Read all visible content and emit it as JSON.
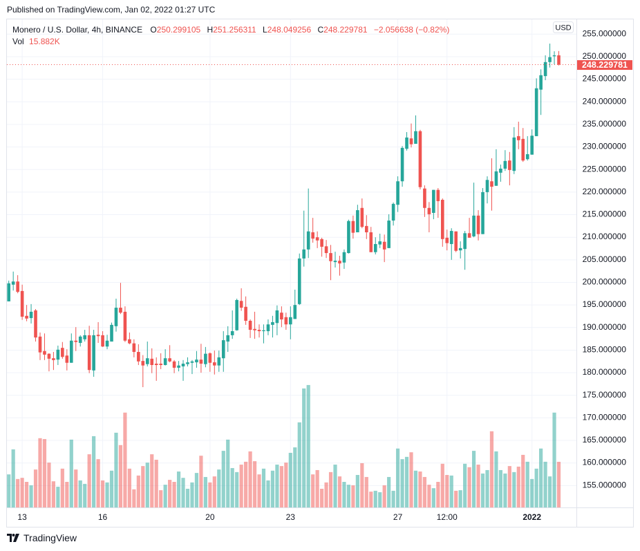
{
  "published": "Published on TradingView.com, Jan 02, 2022 01:27 UTC",
  "legend": {
    "symbol": "Monero / U.S. Dollar, 4h, BINANCE",
    "o_label": "O",
    "o": "250.299105",
    "h_label": "H",
    "h": "251.256311",
    "l_label": "L",
    "l": "248.049256",
    "c_label": "C",
    "c": "248.229781",
    "change": "−2.056638 (−0.82%)",
    "vol_label": "Vol",
    "vol": "15.882K"
  },
  "footer": {
    "brand": "TradingView"
  },
  "colors": {
    "up": "#26a69a",
    "down": "#ef5350",
    "grid": "#f0f3fa",
    "border": "#e0e3eb",
    "text": "#131722"
  },
  "chart_data": {
    "type": "candlestick",
    "symbol": "Monero / U.S. Dollar",
    "interval": "4h",
    "exchange": "BINANCE",
    "currency": "USD",
    "price_axis": {
      "min": 155,
      "max": 255,
      "step": 5,
      "decimals": 6,
      "position": "right"
    },
    "x_tick_labels": [
      "13",
      "16",
      "20",
      "23",
      "27",
      "12:00",
      "2022"
    ],
    "last_price": 248.229781,
    "last_price_label": "248.229781",
    "grid": true,
    "ohlc_fields": [
      "open",
      "high",
      "low",
      "close"
    ],
    "candles": [
      [
        195.8,
        200.4,
        195.8,
        199.8
      ],
      [
        199.5,
        202.4,
        198.2,
        200.2
      ],
      [
        200.2,
        201.6,
        197.6,
        197.9
      ],
      [
        198.1,
        199.5,
        191.7,
        192.4
      ],
      [
        192.6,
        195.0,
        191.4,
        192.0
      ],
      [
        192.1,
        195.2,
        190.9,
        193.5
      ],
      [
        193.8,
        194.1,
        186.9,
        187.8
      ],
      [
        188.0,
        188.9,
        182.8,
        184.5
      ],
      [
        184.8,
        188.7,
        182.8,
        184.0
      ],
      [
        184.2,
        184.3,
        180.3,
        183.1
      ],
      [
        183.2,
        184.6,
        180.6,
        182.8
      ],
      [
        182.9,
        186.0,
        181.7,
        185.1
      ],
      [
        185.5,
        186.8,
        183.1,
        183.5
      ],
      [
        183.8,
        185.2,
        180.5,
        182.2
      ],
      [
        182.2,
        188.7,
        182.2,
        187.1
      ],
      [
        187.1,
        190.1,
        184.8,
        186.8
      ],
      [
        186.6,
        188.3,
        185.8,
        188.0
      ],
      [
        187.4,
        189.5,
        186.9,
        188.3
      ],
      [
        188.3,
        190.4,
        179.9,
        180.6
      ],
      [
        180.5,
        189.5,
        179.1,
        188.3
      ],
      [
        188.4,
        191.2,
        186.6,
        188.1
      ],
      [
        188.3,
        189.2,
        185.7,
        185.8
      ],
      [
        185.8,
        188.4,
        185.2,
        187.1
      ],
      [
        186.9,
        191.1,
        186.9,
        190.6
      ],
      [
        190.3,
        196.4,
        189.1,
        194.4
      ],
      [
        194.4,
        199.9,
        193.0,
        193.3
      ],
      [
        193.5,
        194.7,
        186.8,
        187.1
      ],
      [
        187.4,
        188.9,
        186.3,
        186.5
      ],
      [
        186.5,
        187.4,
        183.4,
        184.6
      ],
      [
        184.6,
        186.3,
        181.7,
        182.5
      ],
      [
        182.6,
        183.9,
        176.8,
        181.6
      ],
      [
        181.9,
        186.9,
        181.4,
        183.2
      ],
      [
        183.1,
        185.4,
        179.9,
        181.7
      ],
      [
        182.0,
        183.4,
        178.2,
        181.7
      ],
      [
        182.0,
        184.3,
        180.8,
        181.7
      ],
      [
        181.7,
        185.2,
        181.6,
        183.2
      ],
      [
        183.2,
        186.1,
        182.3,
        182.5
      ],
      [
        182.5,
        182.8,
        179.9,
        181.1
      ],
      [
        181.1,
        182.6,
        180.3,
        181.6
      ],
      [
        181.4,
        182.8,
        178.2,
        182.0
      ],
      [
        181.9,
        183.4,
        181.4,
        182.3
      ],
      [
        182.2,
        182.8,
        179.7,
        182.5
      ],
      [
        182.3,
        184.8,
        181.1,
        182.9
      ],
      [
        182.9,
        186.4,
        180.0,
        182.0
      ],
      [
        181.9,
        185.7,
        181.2,
        184.2
      ],
      [
        184.3,
        184.5,
        180.2,
        182.2
      ],
      [
        182.3,
        184.9,
        179.6,
        181.6
      ],
      [
        181.6,
        184.9,
        180.2,
        183.4
      ],
      [
        183.2,
        189.2,
        180.2,
        187.2
      ],
      [
        186.9,
        190.3,
        184.6,
        188.3
      ],
      [
        188.3,
        193.8,
        187.5,
        189.2
      ],
      [
        189.4,
        196.4,
        189.3,
        196.1
      ],
      [
        195.9,
        198.7,
        193.7,
        194.4
      ],
      [
        194.6,
        196.9,
        190.6,
        191.5
      ],
      [
        191.5,
        191.8,
        187.7,
        189.5
      ],
      [
        189.7,
        193.5,
        187.5,
        189.4
      ],
      [
        189.5,
        190.7,
        187.8,
        189.2
      ],
      [
        189.2,
        190.7,
        186.5,
        189.4
      ],
      [
        189.2,
        191.8,
        188.3,
        190.7
      ],
      [
        190.6,
        192.6,
        187.8,
        191.2
      ],
      [
        191.0,
        194.9,
        188.3,
        193.8
      ],
      [
        193.3,
        194.7,
        190.1,
        191.8
      ],
      [
        192.3,
        193.3,
        189.5,
        190.7
      ],
      [
        190.7,
        194.7,
        187.4,
        192.3
      ],
      [
        191.9,
        198.4,
        191.9,
        195.0
      ],
      [
        195.2,
        206.4,
        195.0,
        205.3
      ],
      [
        205.3,
        215.9,
        203.5,
        207.3
      ],
      [
        207.3,
        220.8,
        205.4,
        211.3
      ],
      [
        211.1,
        214.3,
        208.8,
        209.7
      ],
      [
        210.0,
        211.3,
        207.6,
        209.3
      ],
      [
        209.6,
        209.9,
        205.7,
        207.9
      ],
      [
        208.0,
        209.4,
        205.4,
        206.5
      ],
      [
        206.5,
        208.3,
        200.5,
        204.7
      ],
      [
        204.5,
        206.8,
        203.3,
        204.8
      ],
      [
        204.8,
        205.9,
        201.5,
        204.2
      ],
      [
        204.4,
        207.3,
        203.0,
        206.7
      ],
      [
        206.5,
        213.9,
        206.4,
        213.6
      ],
      [
        213.6,
        214.8,
        209.7,
        211.0
      ],
      [
        211.1,
        217.2,
        211.1,
        216.0
      ],
      [
        216.5,
        218.6,
        212.0,
        212.3
      ],
      [
        212.5,
        214.9,
        209.6,
        211.1
      ],
      [
        211.1,
        212.3,
        206.7,
        206.7
      ],
      [
        206.7,
        210.0,
        206.2,
        208.5
      ],
      [
        208.4,
        210.8,
        207.6,
        209.1
      ],
      [
        209.0,
        210.6,
        204.5,
        207.3
      ],
      [
        207.6,
        215.1,
        207.6,
        213.7
      ],
      [
        213.7,
        217.7,
        212.6,
        217.4
      ],
      [
        217.2,
        223.5,
        215.6,
        222.4
      ],
      [
        222.4,
        230.2,
        221.2,
        229.8
      ],
      [
        229.6,
        233.3,
        229.2,
        232.1
      ],
      [
        231.9,
        235.2,
        229.9,
        230.6
      ],
      [
        230.7,
        237.0,
        230.7,
        233.5
      ],
      [
        233.5,
        233.8,
        220.6,
        221.1
      ],
      [
        220.8,
        221.5,
        214.5,
        216.5
      ],
      [
        216.5,
        217.8,
        211.1,
        215.1
      ],
      [
        215.4,
        220.5,
        214.0,
        220.5
      ],
      [
        220.5,
        220.9,
        214.3,
        218.0
      ],
      [
        218.3,
        218.6,
        207.9,
        209.6
      ],
      [
        209.9,
        211.7,
        207.1,
        208.7
      ],
      [
        208.5,
        212.0,
        205.0,
        211.4
      ],
      [
        211.3,
        211.3,
        206.7,
        207.0
      ],
      [
        207.1,
        209.1,
        205.3,
        207.6
      ],
      [
        207.4,
        211.4,
        202.8,
        210.9
      ],
      [
        210.9,
        214.3,
        209.9,
        209.9
      ],
      [
        210.2,
        222.1,
        210.0,
        214.8
      ],
      [
        214.8,
        216.0,
        209.3,
        210.7
      ],
      [
        210.7,
        220.9,
        210.7,
        220.0
      ],
      [
        220.0,
        223.5,
        217.5,
        222.7
      ],
      [
        222.4,
        227.5,
        215.9,
        221.2
      ],
      [
        221.4,
        229.5,
        221.4,
        224.6
      ],
      [
        224.3,
        226.1,
        222.3,
        225.2
      ],
      [
        225.2,
        229.3,
        224.7,
        226.9
      ],
      [
        227.0,
        228.9,
        221.5,
        224.9
      ],
      [
        224.7,
        234.4,
        224.0,
        232.1
      ],
      [
        232.4,
        235.6,
        229.5,
        231.5
      ],
      [
        231.8,
        234.2,
        226.7,
        227.0
      ],
      [
        227.3,
        232.4,
        227.0,
        228.4
      ],
      [
        228.3,
        233.9,
        228.3,
        232.5
      ],
      [
        232.4,
        245.2,
        232.4,
        243.0
      ],
      [
        242.7,
        247.2,
        237.1,
        245.9
      ],
      [
        245.7,
        250.3,
        244.8,
        248.8
      ],
      [
        248.8,
        252.9,
        247.6,
        249.9
      ],
      [
        250.1,
        251.2,
        248.3,
        250.3
      ],
      [
        250.299105,
        251.256311,
        248.049256,
        248.229781
      ]
    ],
    "volume_unit": "K",
    "volume": [
      11.5,
      20.2,
      9.9,
      10.3,
      8.9,
      7.7,
      13.2,
      24.1,
      23.8,
      15.6,
      9.1,
      7.2,
      13.5,
      8.9,
      23.6,
      13.2,
      9.4,
      8.2,
      18.5,
      24.8,
      16.8,
      9.4,
      8.7,
      12.8,
      26.0,
      21.7,
      33.0,
      13.5,
      6.3,
      11.1,
      14.4,
      15.6,
      18.5,
      16.6,
      6.0,
      7.9,
      9.6,
      8.9,
      12.5,
      10.3,
      6.5,
      8.7,
      12.0,
      18.0,
      10.6,
      8.7,
      10.8,
      13.2,
      19.7,
      23.6,
      13.7,
      12.3,
      14.9,
      15.9,
      19.5,
      16.1,
      11.5,
      13.5,
      9.4,
      12.8,
      14.9,
      14.4,
      15.6,
      19.0,
      20.9,
      29.6,
      41.4,
      42.6,
      11.5,
      13.0,
      6.5,
      8.7,
      12.3,
      14.9,
      10.8,
      8.9,
      7.9,
      7.7,
      11.3,
      15.4,
      10.6,
      5.5,
      5.8,
      5.3,
      7.7,
      10.6,
      5.8,
      20.5,
      16.8,
      17.6,
      19.2,
      12.8,
      12.5,
      10.6,
      7.9,
      6.7,
      8.9,
      15.2,
      11.3,
      11.1,
      5.8,
      6.0,
      15.2,
      14.0,
      19.7,
      14.9,
      11.8,
      13.0,
      26.5,
      19.5,
      13.0,
      11.8,
      14.4,
      12.3,
      14.2,
      18.3,
      15.9,
      9.9,
      13.5,
      20.5,
      15.9,
      10.8,
      33.0,
      15.882
    ]
  }
}
